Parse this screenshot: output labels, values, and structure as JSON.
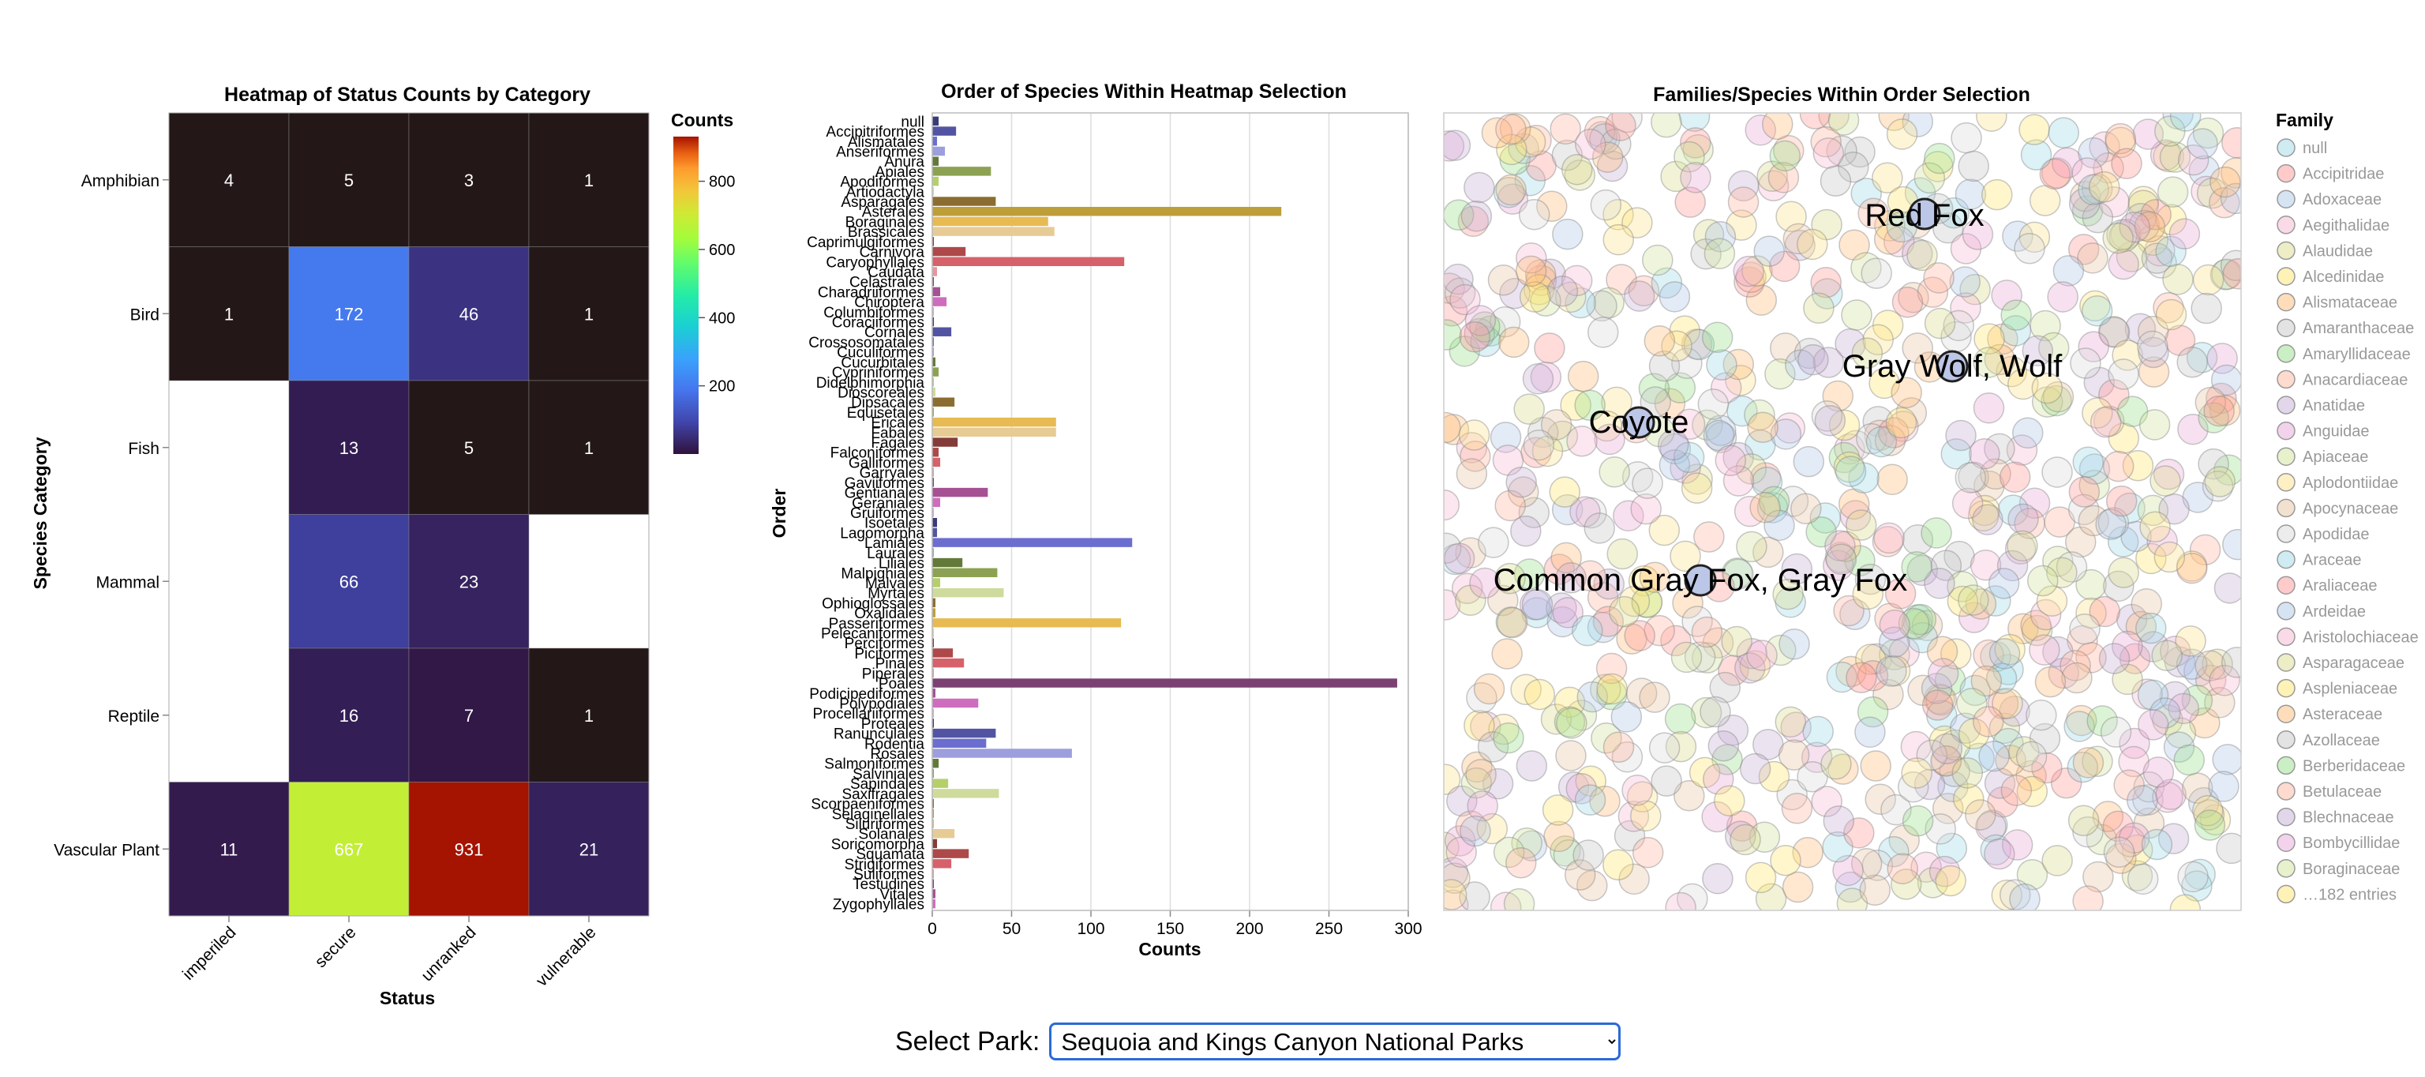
{
  "heatmap": {
    "title": "Heatmap of Status Counts by Category",
    "xlabel": "Status",
    "ylabel": "Species Category",
    "legend_title": "Counts",
    "legend_ticks": [
      "800",
      "600",
      "400",
      "200"
    ],
    "colormap": "turbo"
  },
  "bars": {
    "title": "Order of Species Within Heatmap Selection",
    "xlabel": "Counts",
    "ylabel": "Order",
    "x_ticks": [
      "0",
      "50",
      "100",
      "150",
      "200",
      "250",
      "300"
    ]
  },
  "bubbles": {
    "title": "Families/Species Within Order Selection",
    "legend_title": "Family",
    "legend_items": [
      "null",
      "Accipitridae",
      "Adoxaceae",
      "Aegithalidae",
      "Alaudidae",
      "Alcedinidae",
      "Alismataceae",
      "Amaranthaceae",
      "Amaryllidaceae",
      "Anacardiaceae",
      "Anatidae",
      "Anguidae",
      "Apiaceae",
      "Aplodontiidae",
      "Apocynaceae",
      "Apodidae",
      "Araceae",
      "Araliaceae",
      "Ardeidae",
      "Aristolochiaceae",
      "Asparagaceae",
      "Aspleniaceae",
      "Asteraceae",
      "Azollaceae",
      "Berberidaceae",
      "Betulaceae",
      "Blechnaceae",
      "Bombycillidae",
      "Boraginaceae"
    ],
    "legend_more": "…182 entries",
    "labels": [
      "Red Fox",
      "Gray Wolf, Wolf",
      "Coyote",
      "Common Gray Fox, Gray Fox"
    ]
  },
  "park": {
    "label": "Select Park:",
    "value": "Sequoia and Kings Canyon National Parks"
  },
  "chart_data": [
    {
      "type": "heatmap",
      "title": "Heatmap of Status Counts by Category",
      "x": [
        "imperiled",
        "secure",
        "unranked",
        "vulnerable"
      ],
      "y": [
        "Amphibian",
        "Bird",
        "Fish",
        "Mammal",
        "Reptile",
        "Vascular Plant"
      ],
      "values": [
        [
          4,
          5,
          3,
          1
        ],
        [
          1,
          172,
          46,
          1
        ],
        [
          null,
          13,
          5,
          1
        ],
        [
          null,
          66,
          23,
          null
        ],
        [
          null,
          16,
          7,
          1
        ],
        [
          11,
          667,
          931,
          21
        ]
      ],
      "xlabel": "Status",
      "ylabel": "Species Category",
      "color_range": [
        0,
        931
      ]
    },
    {
      "type": "bar",
      "orientation": "horizontal",
      "title": "Order of Species Within Heatmap Selection",
      "xlabel": "Counts",
      "ylabel": "Order",
      "xlim": [
        0,
        300
      ],
      "categories": [
        "null",
        "Accipitriformes",
        "Alismatales",
        "Anseriformes",
        "Anura",
        "Apiales",
        "Apodiformes",
        "Artiodactyla",
        "Asparagales",
        "Asterales",
        "Boraginales",
        "Brassicales",
        "Caprimulgiformes",
        "Carnivora",
        "Caryophyllales",
        "Caudata",
        "Celastrales",
        "Charadriiformes",
        "Chiroptera",
        "Columbiformes",
        "Coraciiformes",
        "Cornales",
        "Crossosomatales",
        "Cuculiformes",
        "Cucurbitales",
        "Cypriniformes",
        "Didelphimorphia",
        "Dioscoreales",
        "Dipsacales",
        "Equisetales",
        "Ericales",
        "Fabales",
        "Fagales",
        "Falconiformes",
        "Galliformes",
        "Garryales",
        "Gaviiformes",
        "Gentianales",
        "Geraniales",
        "Gruiformes",
        "Isoetales",
        "Lagomorpha",
        "Lamiales",
        "Laurales",
        "Liliales",
        "Malpighiales",
        "Malvales",
        "Myrtales",
        "Ophioglossales",
        "Oxalidales",
        "Passeriformes",
        "Pelecaniformes",
        "Perciformes",
        "Piciformes",
        "Pinales",
        "Piperales",
        "Poales",
        "Podicipediformes",
        "Polypodiales",
        "Procellariiformes",
        "Proteales",
        "Ranunculales",
        "Rodentia",
        "Rosales",
        "Salmoniformes",
        "Salviniales",
        "Sapindales",
        "Saxifragales",
        "Scorpaeniformes",
        "Selaginellales",
        "Siluriformes",
        "Solanales",
        "Soricomorpha",
        "Squamata",
        "Strigiformes",
        "Suliformes",
        "Testudines",
        "Vitales",
        "Zygophyllales"
      ],
      "values": [
        4,
        15,
        3,
        8,
        4,
        37,
        4,
        1,
        40,
        220,
        73,
        77,
        1,
        21,
        121,
        3,
        1,
        5,
        9,
        1,
        1,
        12,
        1,
        1,
        2,
        4,
        1,
        2,
        14,
        1,
        78,
        78,
        16,
        4,
        5,
        1,
        1,
        35,
        5,
        1,
        3,
        3,
        126,
        1,
        19,
        41,
        5,
        45,
        2,
        2,
        119,
        1,
        1,
        13,
        20,
        1,
        293,
        2,
        29,
        1,
        1,
        40,
        34,
        88,
        4,
        1,
        10,
        42,
        1,
        1,
        1,
        14,
        3,
        23,
        12,
        1,
        1,
        2,
        2
      ]
    }
  ]
}
